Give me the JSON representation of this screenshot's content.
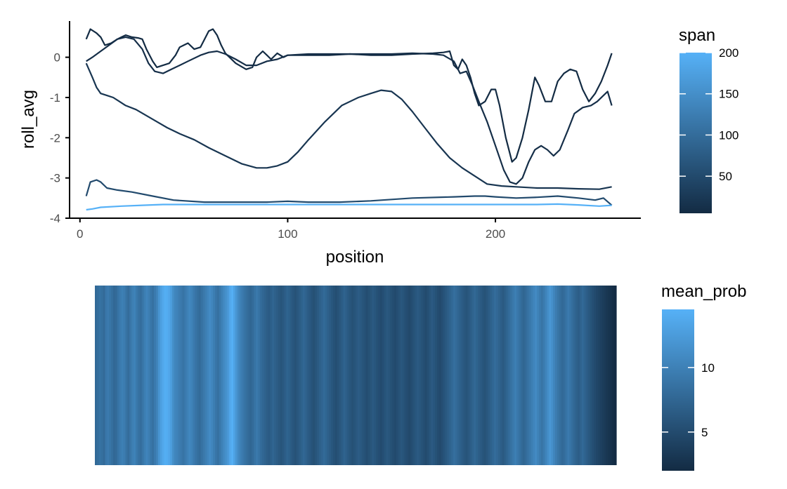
{
  "chart_data": [
    {
      "type": "line",
      "xlabel": "position",
      "ylabel": "roll_avg",
      "xlim": [
        -5,
        270
      ],
      "ylim": [
        -4,
        0.9
      ],
      "x_ticks": [
        "0",
        "100",
        "200"
      ],
      "y_ticks": [
        "0",
        "-1",
        "-2",
        "-3",
        "-4"
      ],
      "grid": false,
      "legend": {
        "title": "span",
        "placement": "right",
        "range": [
          5,
          200
        ],
        "labels": [
          "200",
          "150",
          "100",
          "50"
        ],
        "low_color": "#132B43",
        "high_color": "#56B1F7"
      },
      "series": [
        {
          "span": 5,
          "points": [
            [
              3,
              0.45
            ],
            [
              5,
              0.7
            ],
            [
              8,
              0.6
            ],
            [
              10,
              0.5
            ],
            [
              12,
              0.3
            ],
            [
              15,
              0.35
            ],
            [
              18,
              0.45
            ],
            [
              20,
              0.5
            ],
            [
              22,
              0.55
            ],
            [
              25,
              0.5
            ],
            [
              28,
              0.48
            ],
            [
              30,
              0.45
            ],
            [
              32,
              0.2
            ],
            [
              35,
              -0.1
            ],
            [
              37,
              -0.25
            ],
            [
              40,
              -0.2
            ],
            [
              43,
              -0.15
            ],
            [
              46,
              0.05
            ],
            [
              48,
              0.25
            ],
            [
              50,
              0.3
            ],
            [
              52,
              0.35
            ],
            [
              55,
              0.2
            ],
            [
              58,
              0.25
            ],
            [
              60,
              0.45
            ],
            [
              62,
              0.65
            ],
            [
              64,
              0.7
            ],
            [
              66,
              0.55
            ],
            [
              68,
              0.3
            ],
            [
              70,
              0.1
            ],
            [
              75,
              -0.15
            ],
            [
              80,
              -0.3
            ],
            [
              83,
              -0.25
            ],
            [
              85,
              0.0
            ],
            [
              88,
              0.15
            ],
            [
              90,
              0.05
            ],
            [
              92,
              -0.05
            ],
            [
              95,
              0.1
            ],
            [
              98,
              0.0
            ],
            [
              100,
              0.05
            ],
            [
              105,
              0.05
            ],
            [
              110,
              0.05
            ],
            [
              120,
              0.05
            ],
            [
              130,
              0.08
            ],
            [
              140,
              0.05
            ],
            [
              150,
              0.05
            ],
            [
              160,
              0.08
            ],
            [
              170,
              0.1
            ],
            [
              175,
              0.12
            ],
            [
              178,
              0.15
            ],
            [
              180,
              -0.2
            ],
            [
              182,
              -0.3
            ],
            [
              184,
              -0.05
            ],
            [
              186,
              -0.2
            ],
            [
              188,
              -0.5
            ],
            [
              190,
              -0.9
            ],
            [
              192,
              -1.2
            ],
            [
              195,
              -1.1
            ],
            [
              198,
              -0.8
            ],
            [
              200,
              -0.8
            ],
            [
              202,
              -1.2
            ],
            [
              205,
              -2.0
            ],
            [
              208,
              -2.6
            ],
            [
              210,
              -2.5
            ],
            [
              213,
              -2.0
            ],
            [
              216,
              -1.3
            ],
            [
              219,
              -0.5
            ],
            [
              221,
              -0.7
            ],
            [
              224,
              -1.1
            ],
            [
              227,
              -1.1
            ],
            [
              230,
              -0.6
            ],
            [
              233,
              -0.4
            ],
            [
              236,
              -0.3
            ],
            [
              239,
              -0.35
            ],
            [
              242,
              -0.8
            ],
            [
              245,
              -1.1
            ],
            [
              248,
              -0.9
            ],
            [
              251,
              -0.6
            ],
            [
              254,
              -0.2
            ],
            [
              256,
              0.1
            ]
          ]
        },
        {
          "span": 10,
          "points": [
            [
              3,
              -0.1
            ],
            [
              6,
              0.0
            ],
            [
              10,
              0.15
            ],
            [
              14,
              0.3
            ],
            [
              18,
              0.45
            ],
            [
              22,
              0.5
            ],
            [
              26,
              0.45
            ],
            [
              30,
              0.2
            ],
            [
              33,
              -0.15
            ],
            [
              36,
              -0.35
            ],
            [
              40,
              -0.4
            ],
            [
              44,
              -0.3
            ],
            [
              48,
              -0.2
            ],
            [
              52,
              -0.1
            ],
            [
              58,
              0.05
            ],
            [
              62,
              0.12
            ],
            [
              66,
              0.15
            ],
            [
              70,
              0.08
            ],
            [
              75,
              -0.05
            ],
            [
              80,
              -0.2
            ],
            [
              85,
              -0.2
            ],
            [
              90,
              -0.1
            ],
            [
              95,
              -0.05
            ],
            [
              100,
              0.05
            ],
            [
              110,
              0.08
            ],
            [
              120,
              0.08
            ],
            [
              130,
              0.08
            ],
            [
              140,
              0.08
            ],
            [
              150,
              0.08
            ],
            [
              160,
              0.1
            ],
            [
              170,
              0.08
            ],
            [
              175,
              0.05
            ],
            [
              180,
              -0.1
            ],
            [
              183,
              -0.4
            ],
            [
              186,
              -0.35
            ],
            [
              189,
              -0.7
            ],
            [
              192,
              -1.1
            ],
            [
              196,
              -1.6
            ],
            [
              200,
              -2.2
            ],
            [
              204,
              -2.8
            ],
            [
              207,
              -3.1
            ],
            [
              210,
              -3.15
            ],
            [
              213,
              -3.0
            ],
            [
              216,
              -2.6
            ],
            [
              219,
              -2.3
            ],
            [
              222,
              -2.2
            ],
            [
              225,
              -2.3
            ],
            [
              228,
              -2.45
            ],
            [
              231,
              -2.3
            ],
            [
              235,
              -1.8
            ],
            [
              238,
              -1.4
            ],
            [
              242,
              -1.25
            ],
            [
              246,
              -1.2
            ],
            [
              249,
              -1.1
            ],
            [
              252,
              -0.95
            ],
            [
              254,
              -0.85
            ],
            [
              256,
              -1.2
            ]
          ]
        },
        {
          "span": 20,
          "points": [
            [
              3,
              -0.15
            ],
            [
              6,
              -0.5
            ],
            [
              8,
              -0.75
            ],
            [
              10,
              -0.9
            ],
            [
              13,
              -0.95
            ],
            [
              16,
              -1.0
            ],
            [
              19,
              -1.1
            ],
            [
              22,
              -1.2
            ],
            [
              27,
              -1.3
            ],
            [
              32,
              -1.45
            ],
            [
              37,
              -1.6
            ],
            [
              42,
              -1.75
            ],
            [
              48,
              -1.9
            ],
            [
              55,
              -2.05
            ],
            [
              62,
              -2.25
            ],
            [
              70,
              -2.45
            ],
            [
              78,
              -2.65
            ],
            [
              85,
              -2.75
            ],
            [
              90,
              -2.75
            ],
            [
              95,
              -2.7
            ],
            [
              100,
              -2.6
            ],
            [
              105,
              -2.35
            ],
            [
              110,
              -2.05
            ],
            [
              118,
              -1.6
            ],
            [
              126,
              -1.2
            ],
            [
              134,
              -1.0
            ],
            [
              140,
              -0.9
            ],
            [
              145,
              -0.82
            ],
            [
              150,
              -0.85
            ],
            [
              155,
              -1.05
            ],
            [
              160,
              -1.35
            ],
            [
              166,
              -1.75
            ],
            [
              172,
              -2.15
            ],
            [
              178,
              -2.5
            ],
            [
              184,
              -2.75
            ],
            [
              190,
              -2.95
            ],
            [
              196,
              -3.15
            ],
            [
              203,
              -3.2
            ],
            [
              210,
              -3.22
            ],
            [
              220,
              -3.25
            ],
            [
              230,
              -3.25
            ],
            [
              240,
              -3.27
            ],
            [
              250,
              -3.28
            ],
            [
              256,
              -3.22
            ]
          ]
        },
        {
          "span": 50,
          "points": [
            [
              3,
              -3.45
            ],
            [
              5,
              -3.1
            ],
            [
              8,
              -3.05
            ],
            [
              10,
              -3.1
            ],
            [
              13,
              -3.25
            ],
            [
              18,
              -3.3
            ],
            [
              25,
              -3.35
            ],
            [
              35,
              -3.45
            ],
            [
              45,
              -3.55
            ],
            [
              60,
              -3.6
            ],
            [
              75,
              -3.6
            ],
            [
              90,
              -3.6
            ],
            [
              100,
              -3.58
            ],
            [
              110,
              -3.6
            ],
            [
              125,
              -3.6
            ],
            [
              140,
              -3.57
            ],
            [
              160,
              -3.5
            ],
            [
              180,
              -3.47
            ],
            [
              190,
              -3.45
            ],
            [
              195,
              -3.45
            ],
            [
              200,
              -3.47
            ],
            [
              210,
              -3.5
            ],
            [
              220,
              -3.48
            ],
            [
              230,
              -3.45
            ],
            [
              240,
              -3.5
            ],
            [
              248,
              -3.55
            ],
            [
              252,
              -3.5
            ],
            [
              256,
              -3.68
            ]
          ]
        },
        {
          "span": 200,
          "points": [
            [
              3,
              -3.79
            ],
            [
              6,
              -3.77
            ],
            [
              10,
              -3.73
            ],
            [
              20,
              -3.7
            ],
            [
              30,
              -3.68
            ],
            [
              40,
              -3.66
            ],
            [
              60,
              -3.66
            ],
            [
              100,
              -3.66
            ],
            [
              150,
              -3.66
            ],
            [
              200,
              -3.66
            ],
            [
              220,
              -3.66
            ],
            [
              230,
              -3.65
            ],
            [
              240,
              -3.67
            ],
            [
              250,
              -3.7
            ],
            [
              256,
              -3.68
            ]
          ]
        }
      ]
    },
    {
      "type": "heatmap",
      "legend": {
        "title": "mean_prob",
        "placement": "right",
        "range": [
          2,
          14.5
        ],
        "labels": [
          "10",
          "5"
        ],
        "low_color": "#132B43",
        "high_color": "#56B1F7"
      },
      "x_range": [
        3,
        256
      ],
      "values": [
        7.8,
        8.2,
        8.6,
        8.4,
        7.9,
        9.1,
        9.4,
        8.9,
        8.3,
        7.7,
        8.0,
        8.8,
        9.5,
        9.9,
        9.6,
        8.7,
        8.1,
        9.0,
        9.8,
        10.1,
        9.3,
        8.6,
        8.2,
        8.9,
        9.7,
        10.3,
        9.8,
        9.0,
        8.5,
        9.4,
        10.2,
        11.8,
        12.9,
        13.7,
        14.2,
        14.0,
        13.5,
        12.6,
        11.2,
        10.4,
        10.1,
        9.6,
        9.2,
        8.8,
        9.4,
        10.0,
        10.6,
        10.2,
        9.5,
        8.9,
        8.4,
        8.0,
        8.6,
        9.2,
        9.8,
        10.4,
        11.0,
        10.5,
        9.7,
        9.0,
        8.5,
        9.3,
        10.1,
        10.9,
        11.6,
        12.4,
        13.8,
        14.3,
        13.1,
        11.9,
        10.8,
        10.0,
        9.4,
        8.8,
        8.3,
        7.9,
        7.5,
        8.0,
        8.7,
        9.3,
        8.8,
        8.1,
        7.6,
        7.2,
        6.8,
        6.5,
        6.9,
        7.4,
        7.0,
        6.6,
        6.2,
        5.9,
        6.3,
        6.8,
        7.3,
        6.9,
        6.4,
        6.0,
        5.7,
        6.1,
        6.6,
        7.1,
        7.6,
        7.2,
        6.7,
        6.3,
        5.8,
        5.5,
        5.9,
        6.4,
        6.9,
        7.4,
        7.9,
        7.5,
        7.0,
        6.5,
        6.0,
        5.6,
        5.3,
        5.7,
        6.2,
        6.7,
        7.2,
        6.8,
        6.3,
        5.9,
        5.5,
        5.8,
        6.2,
        6.6,
        6.3,
        5.9,
        5.6,
        5.2,
        5.5,
        5.9,
        6.3,
        6.0,
        5.6,
        5.3,
        5.0,
        5.4,
        5.8,
        6.2,
        5.9,
        5.5,
        5.2,
        4.9,
        5.3,
        5.7,
        6.1,
        5.8,
        5.4,
        5.1,
        4.8,
        5.2,
        5.6,
        6.0,
        6.4,
        6.1,
        5.7,
        5.4,
        5.0,
        5.4,
        5.9,
        6.4,
        6.0,
        5.6,
        5.2,
        4.9,
        5.3,
        5.8,
        6.3,
        6.8,
        7.3,
        7.8,
        8.3,
        7.9,
        7.4,
        6.9,
        6.5,
        6.1,
        5.8,
        6.2,
        6.7,
        7.2,
        7.7,
        7.3,
        6.8,
        6.4,
        6.0,
        5.7,
        6.1,
        6.6,
        7.1,
        7.6,
        8.1,
        7.7,
        7.2,
        6.8,
        6.4,
        6.9,
        7.5,
        8.1,
        8.7,
        9.3,
        9.8,
        9.2,
        8.6,
        8.0,
        7.5,
        7.9,
        8.5,
        9.1,
        9.7,
        10.3,
        10.9,
        10.2,
        9.5,
        8.9,
        9.5,
        10.3,
        11.2,
        12.0,
        11.3,
        10.4,
        9.6,
        8.9,
        8.3,
        7.8,
        8.2,
        8.8,
        9.4,
        8.8,
        8.2,
        7.6,
        7.1,
        6.7,
        7.2,
        7.8,
        7.3,
        6.8,
        6.3,
        5.8,
        5.4,
        5.0,
        4.6,
        4.3,
        4.0,
        3.7,
        3.4,
        3.1,
        2.8,
        2.5,
        2.2,
        2.0
      ]
    }
  ]
}
